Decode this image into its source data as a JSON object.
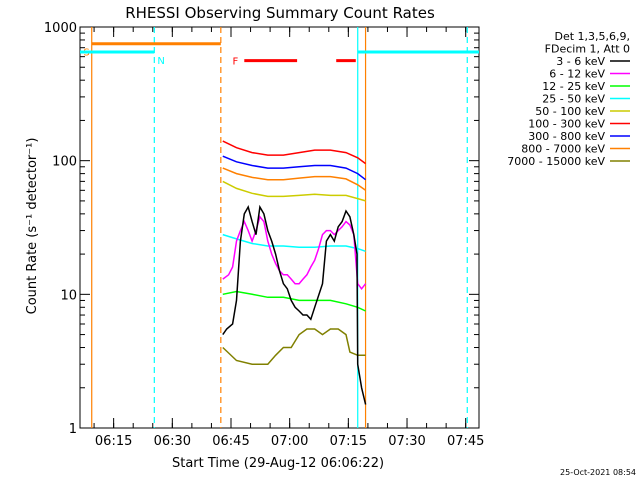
{
  "chart_data": {
    "type": "line",
    "title": "RHESSI Observing Summary Count Rates",
    "xlabel": "Start Time (29-Aug-12 06:06:22)",
    "ylabel": "Count Rate (s⁻¹ detector⁻¹)",
    "yscale": "log",
    "ylim": [
      1,
      1000
    ],
    "xlim_minutes": [
      0,
      102
    ],
    "x_ticks": [
      {
        "label": "06:15",
        "min": 8.6
      },
      {
        "label": "06:30",
        "min": 23.6
      },
      {
        "label": "06:45",
        "min": 38.6
      },
      {
        "label": "07:00",
        "min": 53.6
      },
      {
        "label": "07:15",
        "min": 68.6
      },
      {
        "label": "07:30",
        "min": 83.6
      },
      {
        "label": "07:45",
        "min": 98.6
      }
    ],
    "y_ticks": [
      {
        "label": "1",
        "value": 1
      },
      {
        "label": "10",
        "value": 10
      },
      {
        "label": "100",
        "value": 100
      },
      {
        "label": "1000",
        "value": 1000
      }
    ],
    "legend_header": [
      "Det 1,3,5,6,9,",
      "FDecim 1, Att 0"
    ],
    "legend_position": "right",
    "series": [
      {
        "name": "3 - 6 keV",
        "color": "#000000",
        "points": [
          [
            36.5,
            5
          ],
          [
            37.5,
            5.5
          ],
          [
            39,
            6
          ],
          [
            40,
            9
          ],
          [
            41,
            25
          ],
          [
            42,
            40
          ],
          [
            43,
            45
          ],
          [
            44,
            35
          ],
          [
            45,
            28
          ],
          [
            46,
            45
          ],
          [
            47,
            40
          ],
          [
            48,
            30
          ],
          [
            49,
            25
          ],
          [
            50,
            20
          ],
          [
            51,
            15
          ],
          [
            52,
            12
          ],
          [
            53,
            11
          ],
          [
            54,
            9
          ],
          [
            55,
            8
          ],
          [
            56,
            7.5
          ],
          [
            57,
            7
          ],
          [
            58,
            7
          ],
          [
            59,
            6.5
          ],
          [
            60,
            8
          ],
          [
            62,
            12
          ],
          [
            63,
            25
          ],
          [
            64,
            28
          ],
          [
            65,
            25
          ],
          [
            66,
            32
          ],
          [
            67,
            35
          ],
          [
            68,
            42
          ],
          [
            69,
            38
          ],
          [
            70,
            28
          ],
          [
            70.8,
            20
          ],
          [
            71,
            3
          ],
          [
            72,
            2
          ],
          [
            73,
            1.5
          ]
        ]
      },
      {
        "name": "6 - 12 keV",
        "color": "#ff00ff",
        "points": [
          [
            36.5,
            13
          ],
          [
            38,
            14
          ],
          [
            39,
            16
          ],
          [
            40,
            25
          ],
          [
            41,
            30
          ],
          [
            42,
            35
          ],
          [
            43,
            30
          ],
          [
            44,
            25
          ],
          [
            45,
            30
          ],
          [
            46,
            38
          ],
          [
            47,
            35
          ],
          [
            48,
            25
          ],
          [
            49,
            20
          ],
          [
            50,
            17
          ],
          [
            51,
            15
          ],
          [
            52,
            14
          ],
          [
            53,
            14
          ],
          [
            54,
            13
          ],
          [
            55,
            12
          ],
          [
            56,
            12
          ],
          [
            57,
            13
          ],
          [
            58,
            14
          ],
          [
            59,
            16
          ],
          [
            60,
            18
          ],
          [
            61,
            22
          ],
          [
            62,
            28
          ],
          [
            63,
            30
          ],
          [
            64,
            30
          ],
          [
            65,
            28
          ],
          [
            66,
            30
          ],
          [
            67,
            32
          ],
          [
            68,
            35
          ],
          [
            69,
            33
          ],
          [
            70,
            28
          ],
          [
            71,
            12
          ],
          [
            72,
            11
          ],
          [
            73,
            12
          ]
        ]
      },
      {
        "name": "12 - 25 keV",
        "color": "#00ff00",
        "points": [
          [
            36.5,
            10
          ],
          [
            40,
            10.5
          ],
          [
            44,
            10
          ],
          [
            48,
            9.5
          ],
          [
            52,
            9.5
          ],
          [
            56,
            9
          ],
          [
            60,
            9
          ],
          [
            64,
            9
          ],
          [
            68,
            8.5
          ],
          [
            71,
            8
          ],
          [
            73,
            7.5
          ]
        ]
      },
      {
        "name": "25 - 50 keV",
        "color": "#00ffff",
        "points": [
          [
            36.5,
            28
          ],
          [
            40,
            26
          ],
          [
            44,
            24
          ],
          [
            48,
            23
          ],
          [
            52,
            23
          ],
          [
            56,
            22.5
          ],
          [
            60,
            22.5
          ],
          [
            64,
            23
          ],
          [
            68,
            23
          ],
          [
            71,
            22
          ],
          [
            73,
            21
          ]
        ]
      },
      {
        "name": "50 - 100 keV",
        "color": "#cccc00",
        "points": [
          [
            36.5,
            70
          ],
          [
            40,
            62
          ],
          [
            44,
            57
          ],
          [
            48,
            54
          ],
          [
            52,
            54
          ],
          [
            56,
            55
          ],
          [
            60,
            56
          ],
          [
            64,
            55
          ],
          [
            68,
            55
          ],
          [
            71,
            52
          ],
          [
            73,
            50
          ]
        ]
      },
      {
        "name": "100 - 300 keV",
        "color": "#ff0000",
        "points": [
          [
            36.5,
            140
          ],
          [
            40,
            125
          ],
          [
            44,
            115
          ],
          [
            48,
            110
          ],
          [
            52,
            110
          ],
          [
            56,
            115
          ],
          [
            60,
            120
          ],
          [
            64,
            120
          ],
          [
            68,
            115
          ],
          [
            71,
            105
          ],
          [
            73,
            95
          ]
        ]
      },
      {
        "name": "300 - 800 keV",
        "color": "#0000ff",
        "points": [
          [
            36.5,
            108
          ],
          [
            40,
            98
          ],
          [
            44,
            92
          ],
          [
            48,
            88
          ],
          [
            52,
            88
          ],
          [
            56,
            90
          ],
          [
            60,
            92
          ],
          [
            64,
            92
          ],
          [
            68,
            88
          ],
          [
            71,
            80
          ],
          [
            73,
            72
          ]
        ]
      },
      {
        "name": "800 - 7000 keV",
        "color": "#ff8000",
        "points": [
          [
            36.5,
            88
          ],
          [
            40,
            80
          ],
          [
            44,
            75
          ],
          [
            48,
            72
          ],
          [
            52,
            72
          ],
          [
            56,
            74
          ],
          [
            60,
            76
          ],
          [
            64,
            76
          ],
          [
            68,
            73
          ],
          [
            71,
            66
          ],
          [
            73,
            60
          ]
        ]
      },
      {
        "name": "7000 - 15000 keV",
        "color": "#808000",
        "points": [
          [
            36.5,
            4
          ],
          [
            40,
            3.2
          ],
          [
            44,
            3
          ],
          [
            48,
            3
          ],
          [
            50,
            3.5
          ],
          [
            52,
            4
          ],
          [
            54,
            4
          ],
          [
            56,
            5
          ],
          [
            58,
            5.5
          ],
          [
            60,
            5.5
          ],
          [
            62,
            5
          ],
          [
            64,
            5.5
          ],
          [
            66,
            5.5
          ],
          [
            68,
            5
          ],
          [
            69,
            3.7
          ],
          [
            71,
            3.5
          ],
          [
            73,
            3.5
          ]
        ]
      }
    ],
    "annotations": [
      {
        "label": "S",
        "color": "#ff8000",
        "min": 3.0,
        "bar_end_min": 36.0,
        "bar_level": 750
      },
      {
        "label": "N",
        "color": "#00ffff",
        "min": 19.0,
        "bar_start_min": 0,
        "bar_end_min": 19.0,
        "bar_level": 650
      },
      {
        "label": "F",
        "color": "#ff0000",
        "intervals": [
          [
            42.0,
            55.5
          ],
          [
            65.5,
            70.5
          ]
        ],
        "bar_level": 560
      }
    ],
    "mode_lines": [
      {
        "color": "#ff8000",
        "style": "solid",
        "min": 3.0
      },
      {
        "color": "#00ffff",
        "style": "dashed",
        "min": 19.0
      },
      {
        "color": "#ff8000",
        "style": "dashed",
        "min": 36.0
      },
      {
        "color": "#00ffff",
        "style": "solid",
        "min": 71.0
      },
      {
        "color": "#ff8000",
        "style": "solid",
        "min": 73.0
      },
      {
        "color": "#00ffff",
        "style": "dashed",
        "min": 99.0
      }
    ],
    "cyan_right_bar": {
      "start_min": 71.0,
      "end_min": 102,
      "level": 650
    },
    "footer_timestamp": "25-Oct-2021 08:54"
  }
}
